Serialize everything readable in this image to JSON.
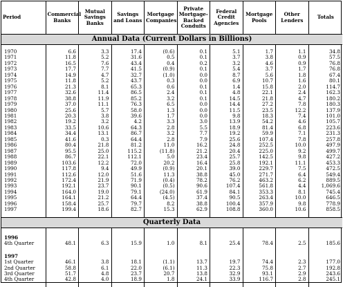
{
  "headers": [
    "Period",
    "Commercial Banks",
    "Mutual Savings Banks",
    "Savings and Loans",
    "Mortgage Companies",
    "Private Mortgage-Backed Conduits",
    "Federal Credit Agencies",
    "Mortgage Pools",
    "Other Lenders",
    "Totals"
  ],
  "annual_title": "Annual Data (Current Dollars in Billions)",
  "quarterly_title": "Quarterly Data",
  "annual": [
    [
      "1970",
      "6.6",
      "3.3",
      "17.4",
      "(0.6)",
      "0.1",
      "5.1",
      "1.7",
      "1.1",
      "34.8"
    ],
    [
      "1971",
      "11.8",
      "5.2",
      "31.6",
      "0.5",
      "0.1",
      "3.7",
      "3.8",
      "0.9",
      "57.5"
    ],
    [
      "1972",
      "16.5",
      "7.6",
      "43.4",
      "0.4",
      "0.2",
      "3.2",
      "4.6",
      "0.9",
      "76.8"
    ],
    [
      "1973",
      "17.7",
      "7.7",
      "41.5",
      "(0.9)",
      "0.1",
      "5.4",
      "3.7",
      "1.7",
      "76.8"
    ],
    [
      "1974",
      "14.9",
      "4.7",
      "32.7",
      "(1.0)",
      "0.0",
      "8.7",
      "5.6",
      "1.8",
      "67.4"
    ],
    [
      "1975",
      "11.8",
      "5.2",
      "43.7",
      "0.3",
      "0.0",
      "6.9",
      "10.7",
      "1.6",
      "80.1"
    ],
    [
      "1976",
      "21.3",
      "8.1",
      "65.3",
      "0.6",
      "0.1",
      "1.4",
      "15.8",
      "2.0",
      "114.7"
    ],
    [
      "1977",
      "32.6",
      "11.4",
      "86.5",
      "2.4",
      "0.1",
      "4.8",
      "22.1",
      "2.4",
      "162.3"
    ],
    [
      "1978",
      "38.8",
      "11.9",
      "85.2",
      "3.2",
      "0.1",
      "14.5",
      "21.8",
      "4.7",
      "180.2"
    ],
    [
      "1979",
      "37.0",
      "11.1",
      "76.3",
      "6.5",
      "0.0",
      "14.4",
      "27.2",
      "7.8",
      "180.3"
    ],
    [
      "1980",
      "25.6",
      "5.7",
      "58.0",
      "1.3",
      "0.0",
      "11.5",
      "23.5",
      "12.2",
      "137.9"
    ],
    [
      "1981",
      "20.3",
      "3.8",
      "39.6",
      "1.7",
      "0.0",
      "9.8",
      "18.3",
      "7.4",
      "101.0"
    ],
    [
      "1982",
      "19.2",
      "3.2",
      "4.2",
      "3.3",
      "3.0",
      "13.9",
      "54.2",
      "4.6",
      "105.7"
    ],
    [
      "1983",
      "33.5",
      "10.6",
      "64.3",
      "2.8",
      "5.5",
      "18.9",
      "81.4",
      "6.8",
      "223.6"
    ],
    [
      "1984",
      "34.4",
      "13.1",
      "86.7",
      "3.2",
      "7.7",
      "19.2",
      "59.9",
      "7.1",
      "231.3"
    ],
    [
      "1985",
      "41.6",
      "0.3",
      "64.4",
      "2.8",
      "7.9",
      "25.6",
      "107.4",
      "7.8",
      "257.8"
    ],
    [
      "1986",
      "80.4",
      "21.8",
      "81.2",
      "11.0",
      "16.2",
      "24.8",
      "252.5",
      "10.0",
      "497.9"
    ],
    [
      "1987",
      "95.5",
      "25.0",
      "115.2",
      "(11.8)",
      "21.2",
      "20.4",
      "225.0",
      "9.2",
      "499.7"
    ],
    [
      "1988",
      "86.7",
      "22.1",
      "112.1",
      "5.0",
      "23.4",
      "25.7",
      "142.5",
      "9.8",
      "427.2"
    ],
    [
      "1989",
      "103.6",
      "12.2",
      "72.0",
      "20.2",
      "16.4",
      "25.8",
      "192.1",
      "11.1",
      "453.3"
    ],
    [
      "1990",
      "117.8",
      "9.4",
      "49.9",
      "(0.9)",
      "20.1",
      "39.0",
      "229.7",
      "7.5",
      "472.5"
    ],
    [
      "1991",
      "112.6",
      "12.0",
      "51.6",
      "11.3",
      "38.8",
      "45.0",
      "271.7",
      "6.4",
      "549.4"
    ],
    [
      "1992",
      "172.4",
      "21.9",
      "71.9",
      "(0.4)",
      "78.2",
      "76.2",
      "463.2",
      "6.2",
      "889.5"
    ],
    [
      "1993",
      "192.1",
      "23.7",
      "90.1",
      "(0.5)",
      "90.6",
      "107.4",
      "561.8",
      "4.4",
      "1,069.6"
    ],
    [
      "1994",
      "164.0",
      "19.0",
      "79.1",
      "(24.0)",
      "61.9",
      "84.1",
      "353.3",
      "8.1",
      "745.4"
    ],
    [
      "1995",
      "164.1",
      "21.2",
      "64.4",
      "(4.5)",
      "37.4",
      "90.5",
      "263.4",
      "10.0",
      "646.5"
    ],
    [
      "1996",
      "158.4",
      "25.7",
      "79.7",
      "8.2",
      "38.8",
      "100.4",
      "357.9",
      "9.8",
      "778.9"
    ],
    [
      "1997",
      "199.4",
      "18.6",
      "82.7",
      "15.3",
      "62.9",
      "108.8",
      "360.0",
      "10.6",
      "858.5"
    ]
  ],
  "q1996_label": "1996",
  "q1996": [
    [
      "4th Quarter",
      "48.1",
      "6.3",
      "15.9",
      "1.0",
      "8.1",
      "25.4",
      "78.4",
      "2.5",
      "185.6"
    ]
  ],
  "q1997_label": "1997",
  "q1997": [
    [
      "1st Quarter",
      "46.1",
      "3.8",
      "18.1",
      "(1.1)",
      "13.7",
      "19.7",
      "74.4",
      "2.3",
      "177.0"
    ],
    [
      "2nd Quarter",
      "58.8",
      "6.1",
      "22.0",
      "(6.1)",
      "11.3",
      "22.3",
      "75.8",
      "2.7",
      "192.8"
    ],
    [
      "3rd Quarter",
      "51.7",
      "4.8",
      "23.7",
      "20.7",
      "13.8",
      "32.9",
      "93.1",
      "2.9",
      "243.6"
    ],
    [
      "4th Quarter",
      "42.8",
      "4.0",
      "18.9",
      "1.8",
      "24.1",
      "33.9",
      "116.7",
      "2.8",
      "245.1"
    ]
  ]
}
